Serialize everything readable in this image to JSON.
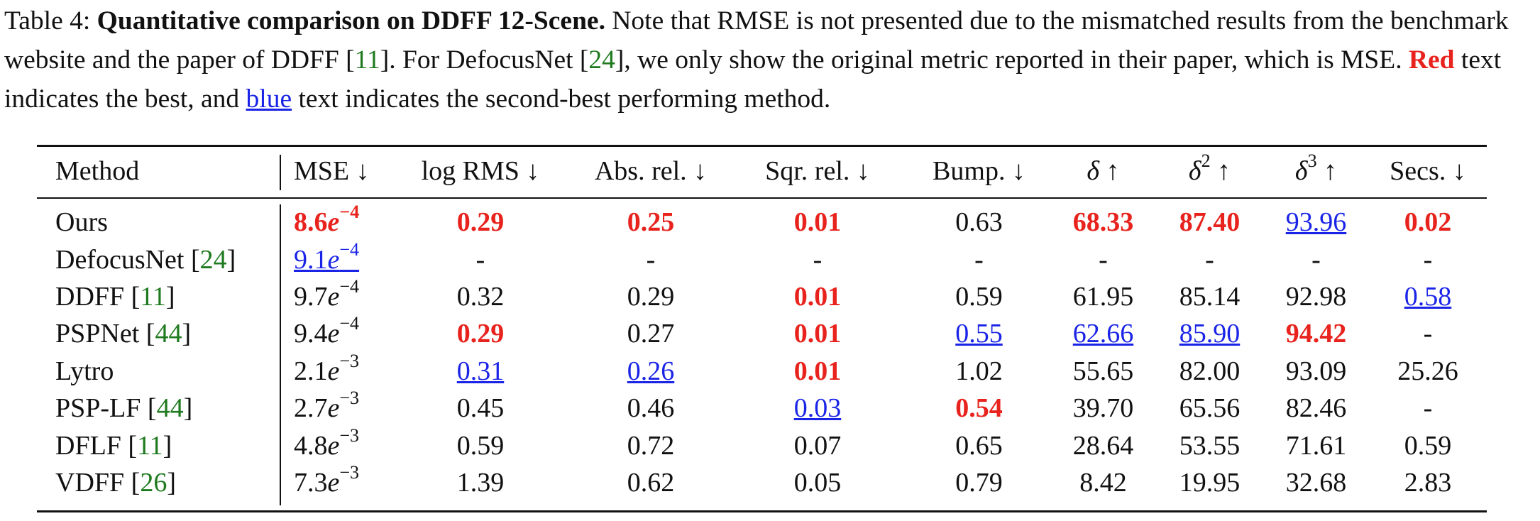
{
  "caption": {
    "label": "Table 4:",
    "title": "Quantitative comparison on DDFF 12-Scene.",
    "text1": "Note that RMSE is not presented due to the mismatched results from the benchmark website and the paper of DDFF [",
    "cite1": "11",
    "text2": "]. For DefocusNet [",
    "cite2": "24",
    "text3": "], we only show the original metric reported in their paper, which is MSE.",
    "red_word": "Red",
    "text4": "text indicates the best, and",
    "blue_word": "blue",
    "text5": "text indicates the second-best performing method."
  },
  "table": {
    "headers": {
      "method": "Method",
      "mse": "MSE ↓",
      "logrms": "log RMS ↓",
      "absrel": "Abs. rel. ↓",
      "sqrrel": "Sqr. rel. ↓",
      "bump": "Bump. ↓",
      "delta1_sym": "δ",
      "delta1_arrow": "↑",
      "delta2_sym": "δ",
      "delta2_exp": "2",
      "delta2_arrow": "↑",
      "delta3_sym": "δ",
      "delta3_exp": "3",
      "delta3_arrow": "↑",
      "secs": "Secs. ↓"
    },
    "rows": [
      {
        "method": "Ours",
        "cite": "",
        "mse_base": "8.6",
        "mse_e": "e",
        "mse_exp": "−4",
        "logrms": "0.29",
        "absrel": "0.25",
        "sqrrel": "0.01",
        "bump": "0.63",
        "d1": "68.33",
        "d2": "87.40",
        "d3": "93.96",
        "secs": "0.02"
      },
      {
        "method": "DefocusNet",
        "cite": "24",
        "mse_base": "9.1",
        "mse_e": "e",
        "mse_exp": "−4",
        "logrms": "-",
        "absrel": "-",
        "sqrrel": "-",
        "bump": "-",
        "d1": "-",
        "d2": "-",
        "d3": "-",
        "secs": "-"
      },
      {
        "method": "DDFF",
        "cite": "11",
        "mse_base": "9.7",
        "mse_e": "e",
        "mse_exp": "−4",
        "logrms": "0.32",
        "absrel": "0.29",
        "sqrrel": "0.01",
        "bump": "0.59",
        "d1": "61.95",
        "d2": "85.14",
        "d3": "92.98",
        "secs": "0.58"
      },
      {
        "method": "PSPNet",
        "cite": "44",
        "mse_base": "9.4",
        "mse_e": "e",
        "mse_exp": "−4",
        "logrms": "0.29",
        "absrel": "0.27",
        "sqrrel": "0.01",
        "bump": "0.55",
        "d1": "62.66",
        "d2": "85.90",
        "d3": "94.42",
        "secs": "-"
      },
      {
        "method": "Lytro",
        "cite": "",
        "mse_base": "2.1",
        "mse_e": "e",
        "mse_exp": "−3",
        "logrms": "0.31",
        "absrel": "0.26",
        "sqrrel": "0.01",
        "bump": "1.02",
        "d1": "55.65",
        "d2": "82.00",
        "d3": "93.09",
        "secs": "25.26"
      },
      {
        "method": "PSP-LF",
        "cite": "44",
        "mse_base": "2.7",
        "mse_e": "e",
        "mse_exp": "−3",
        "logrms": "0.45",
        "absrel": "0.46",
        "sqrrel": "0.03",
        "bump": "0.54",
        "d1": "39.70",
        "d2": "65.56",
        "d3": "82.46",
        "secs": "-"
      },
      {
        "method": "DFLF",
        "cite": "11",
        "mse_base": "4.8",
        "mse_e": "e",
        "mse_exp": "−3",
        "logrms": "0.59",
        "absrel": "0.72",
        "sqrrel": "0.07",
        "bump": "0.65",
        "d1": "28.64",
        "d2": "53.55",
        "d3": "71.61",
        "secs": "0.59"
      },
      {
        "method": "VDFF",
        "cite": "26",
        "mse_base": "7.3",
        "mse_e": "e",
        "mse_exp": "−3",
        "logrms": "1.39",
        "absrel": "0.62",
        "sqrrel": "0.05",
        "bump": "0.79",
        "d1": "8.42",
        "d2": "19.95",
        "d3": "32.68",
        "secs": "2.83"
      }
    ]
  },
  "colors": {
    "best": "#e8231d",
    "second": "#1a24e6",
    "citation": "#1f7a1f"
  }
}
